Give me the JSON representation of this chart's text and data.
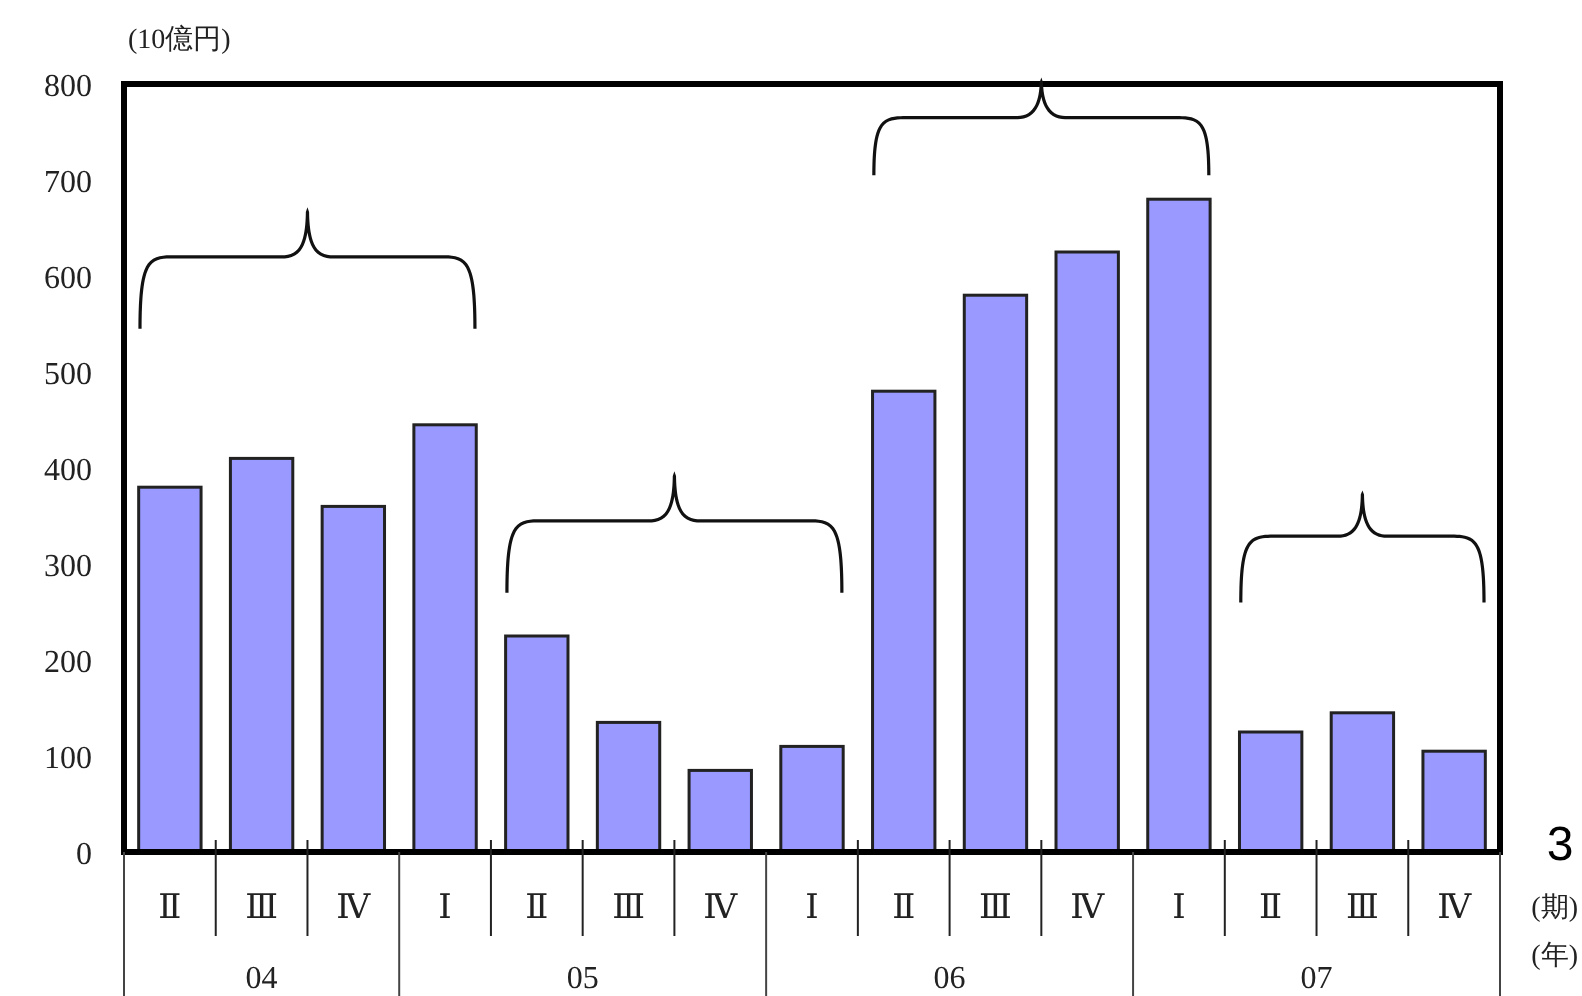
{
  "chart_data": {
    "type": "bar",
    "ylabel": "(10億円)",
    "categories": [
      "Ⅱ",
      "Ⅲ",
      "Ⅳ",
      "Ⅰ",
      "Ⅱ",
      "Ⅲ",
      "Ⅳ",
      "Ⅰ",
      "Ⅱ",
      "Ⅲ",
      "Ⅳ",
      "Ⅰ",
      "Ⅱ",
      "Ⅲ",
      "Ⅳ"
    ],
    "values": [
      380,
      410,
      360,
      445,
      225,
      135,
      85,
      110,
      480,
      580,
      625,
      680,
      125,
      145,
      105
    ],
    "color": "#9999ff",
    "ylim": [
      0,
      800
    ],
    "yticks": [
      0,
      100,
      200,
      300,
      400,
      500,
      600,
      700,
      800
    ],
    "grid": false,
    "annotations": [
      "04",
      "05",
      "06",
      "07",
      "(期)",
      "(年)",
      "3"
    ]
  }
}
